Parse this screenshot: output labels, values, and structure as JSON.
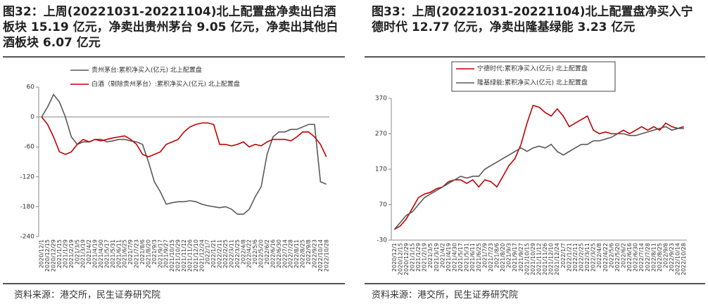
{
  "chart_data": [
    {
      "type": "line",
      "title": "图32：上周(20221031-20221104)北上配置盘净卖出白酒板块 15.19 亿元，净卖出贵州茅台 9.05 亿元，净卖出其他白酒板块 6.07 亿元",
      "source": "资料来源：港交所，民生证券研究院",
      "categories": [
        "2020/12/1",
        "2020/12/15",
        "2020/12/29",
        "2021/1/15",
        "2021/1/29",
        "2021/2/19",
        "2021/3/5",
        "2021/3/19",
        "2021/4/2",
        "2021/4/19",
        "2021/4/30",
        "2021/5/17",
        "2021/5/31",
        "2021/6/11",
        "2021/6/25",
        "2021/7/9",
        "2021/7/23",
        "2021/8/6",
        "2021/8/20",
        "2021/9/3",
        "2021/9/17",
        "2021/9/27",
        "2021/10/15",
        "2021/10/29",
        "2021/11/12",
        "2021/11/26",
        "2021/12/10",
        "2021/12/24",
        "2022/1/7",
        "2022/1/21",
        "2022/2/11",
        "2022/2/25",
        "2022/3/11",
        "2022/3/25",
        "2022/4/8",
        "2022/4/22",
        "2022/5/6",
        "2022/5/20",
        "2022/6/2",
        "2022/6/16",
        "2022/6/30",
        "2022/7/14",
        "2022/7/28",
        "2022/8/11",
        "2022/8/25",
        "2022/9/8",
        "2022/9/23",
        "2022/10/14",
        "2022/10/28"
      ],
      "series": [
        {
          "name": "贵州茅台:累积净买入(亿元) 北上配置盘",
          "color": "#595959",
          "values": [
            0,
            20,
            45,
            30,
            0,
            -40,
            -55,
            -50,
            -50,
            -45,
            -45,
            -50,
            -48,
            -45,
            -45,
            -48,
            -50,
            -55,
            -90,
            -130,
            -150,
            -175,
            -172,
            -170,
            -170,
            -168,
            -170,
            -175,
            -178,
            -180,
            -182,
            -180,
            -185,
            -195,
            -195,
            -185,
            -160,
            -140,
            -75,
            -40,
            -30,
            -30,
            -25,
            -25,
            -20,
            -15,
            -15,
            -130,
            -135
          ]
        },
        {
          "name": "白酒（剔除贵州茅台）:累积净买入(亿元) 北上配置盘",
          "color": "#c00000",
          "values": [
            0,
            -15,
            -40,
            -70,
            -75,
            -70,
            -55,
            -45,
            -50,
            -45,
            -48,
            -45,
            -42,
            -40,
            -38,
            -45,
            -55,
            -75,
            -80,
            -75,
            -70,
            -55,
            -50,
            -45,
            -30,
            -20,
            -15,
            -12,
            -12,
            -15,
            -55,
            -55,
            -58,
            -55,
            -50,
            -60,
            -55,
            -58,
            -50,
            -45,
            -45,
            -45,
            -48,
            -40,
            -30,
            -30,
            -40,
            -55,
            -80
          ]
        }
      ],
      "ylim": [
        -240,
        60
      ],
      "yticks": [
        -240,
        -180,
        -120,
        -60,
        0,
        60
      ],
      "grid": false,
      "legend": "top",
      "legend_frame": false
    },
    {
      "type": "line",
      "title": "图33：上周(20221031-20221104)北上配置盘净买入宁德时代 12.77 亿元，净卖出隆基绿能 3.23 亿元",
      "source": "资料来源：港交所，民生证券研究院",
      "categories": [
        "2020/12/1",
        "2020/12/15",
        "2020/12/29",
        "2021/1/15",
        "2021/1/29",
        "2021/2/19",
        "2021/3/5",
        "2021/3/19",
        "2021/4/2",
        "2021/4/19",
        "2021/4/30",
        "2021/5/17",
        "2021/5/31",
        "2021/6/11",
        "2021/6/25",
        "2021/7/9",
        "2021/7/23",
        "2021/8/6",
        "2021/8/20",
        "2021/9/3",
        "2021/9/17",
        "2021/9/27",
        "2021/10/15",
        "2021/10/29",
        "2021/11/12",
        "2021/11/26",
        "2021/12/10",
        "2021/12/24",
        "2022/1/7",
        "2022/1/21",
        "2022/2/11",
        "2022/2/25",
        "2022/3/11",
        "2022/3/25",
        "2022/4/8",
        "2022/4/22",
        "2022/5/6",
        "2022/5/20",
        "2022/6/2",
        "2022/6/16",
        "2022/6/30",
        "2022/7/14",
        "2022/7/28",
        "2022/8/11",
        "2022/8/25",
        "2022/9/8",
        "2022/9/23",
        "2022/10/14",
        "2022/10/28"
      ],
      "series": [
        {
          "name": "宁德时代:累积净买入(亿元) 北上配置盘",
          "color": "#c00000",
          "values": [
            0,
            10,
            30,
            60,
            90,
            100,
            105,
            115,
            120,
            135,
            140,
            140,
            130,
            140,
            120,
            140,
            135,
            120,
            150,
            180,
            200,
            240,
            300,
            350,
            345,
            330,
            320,
            340,
            320,
            290,
            300,
            310,
            320,
            280,
            270,
            275,
            270,
            270,
            280,
            270,
            280,
            290,
            280,
            290,
            280,
            300,
            290,
            285,
            290
          ]
        },
        {
          "name": "隆基绿能:累积净买入(亿元) 北上配置盘",
          "color": "#595959",
          "values": [
            0,
            20,
            40,
            50,
            70,
            90,
            100,
            110,
            120,
            130,
            140,
            150,
            145,
            150,
            150,
            170,
            180,
            190,
            200,
            210,
            220,
            230,
            220,
            230,
            235,
            230,
            240,
            220,
            210,
            220,
            230,
            240,
            240,
            250,
            250,
            255,
            260,
            270,
            270,
            265,
            265,
            270,
            275,
            280,
            285,
            290,
            280,
            285,
            285
          ]
        }
      ],
      "ylim": [
        -30,
        370
      ],
      "yticks": [
        -30,
        70,
        170,
        270,
        370
      ],
      "grid": false,
      "legend": "top",
      "legend_frame": true
    }
  ]
}
